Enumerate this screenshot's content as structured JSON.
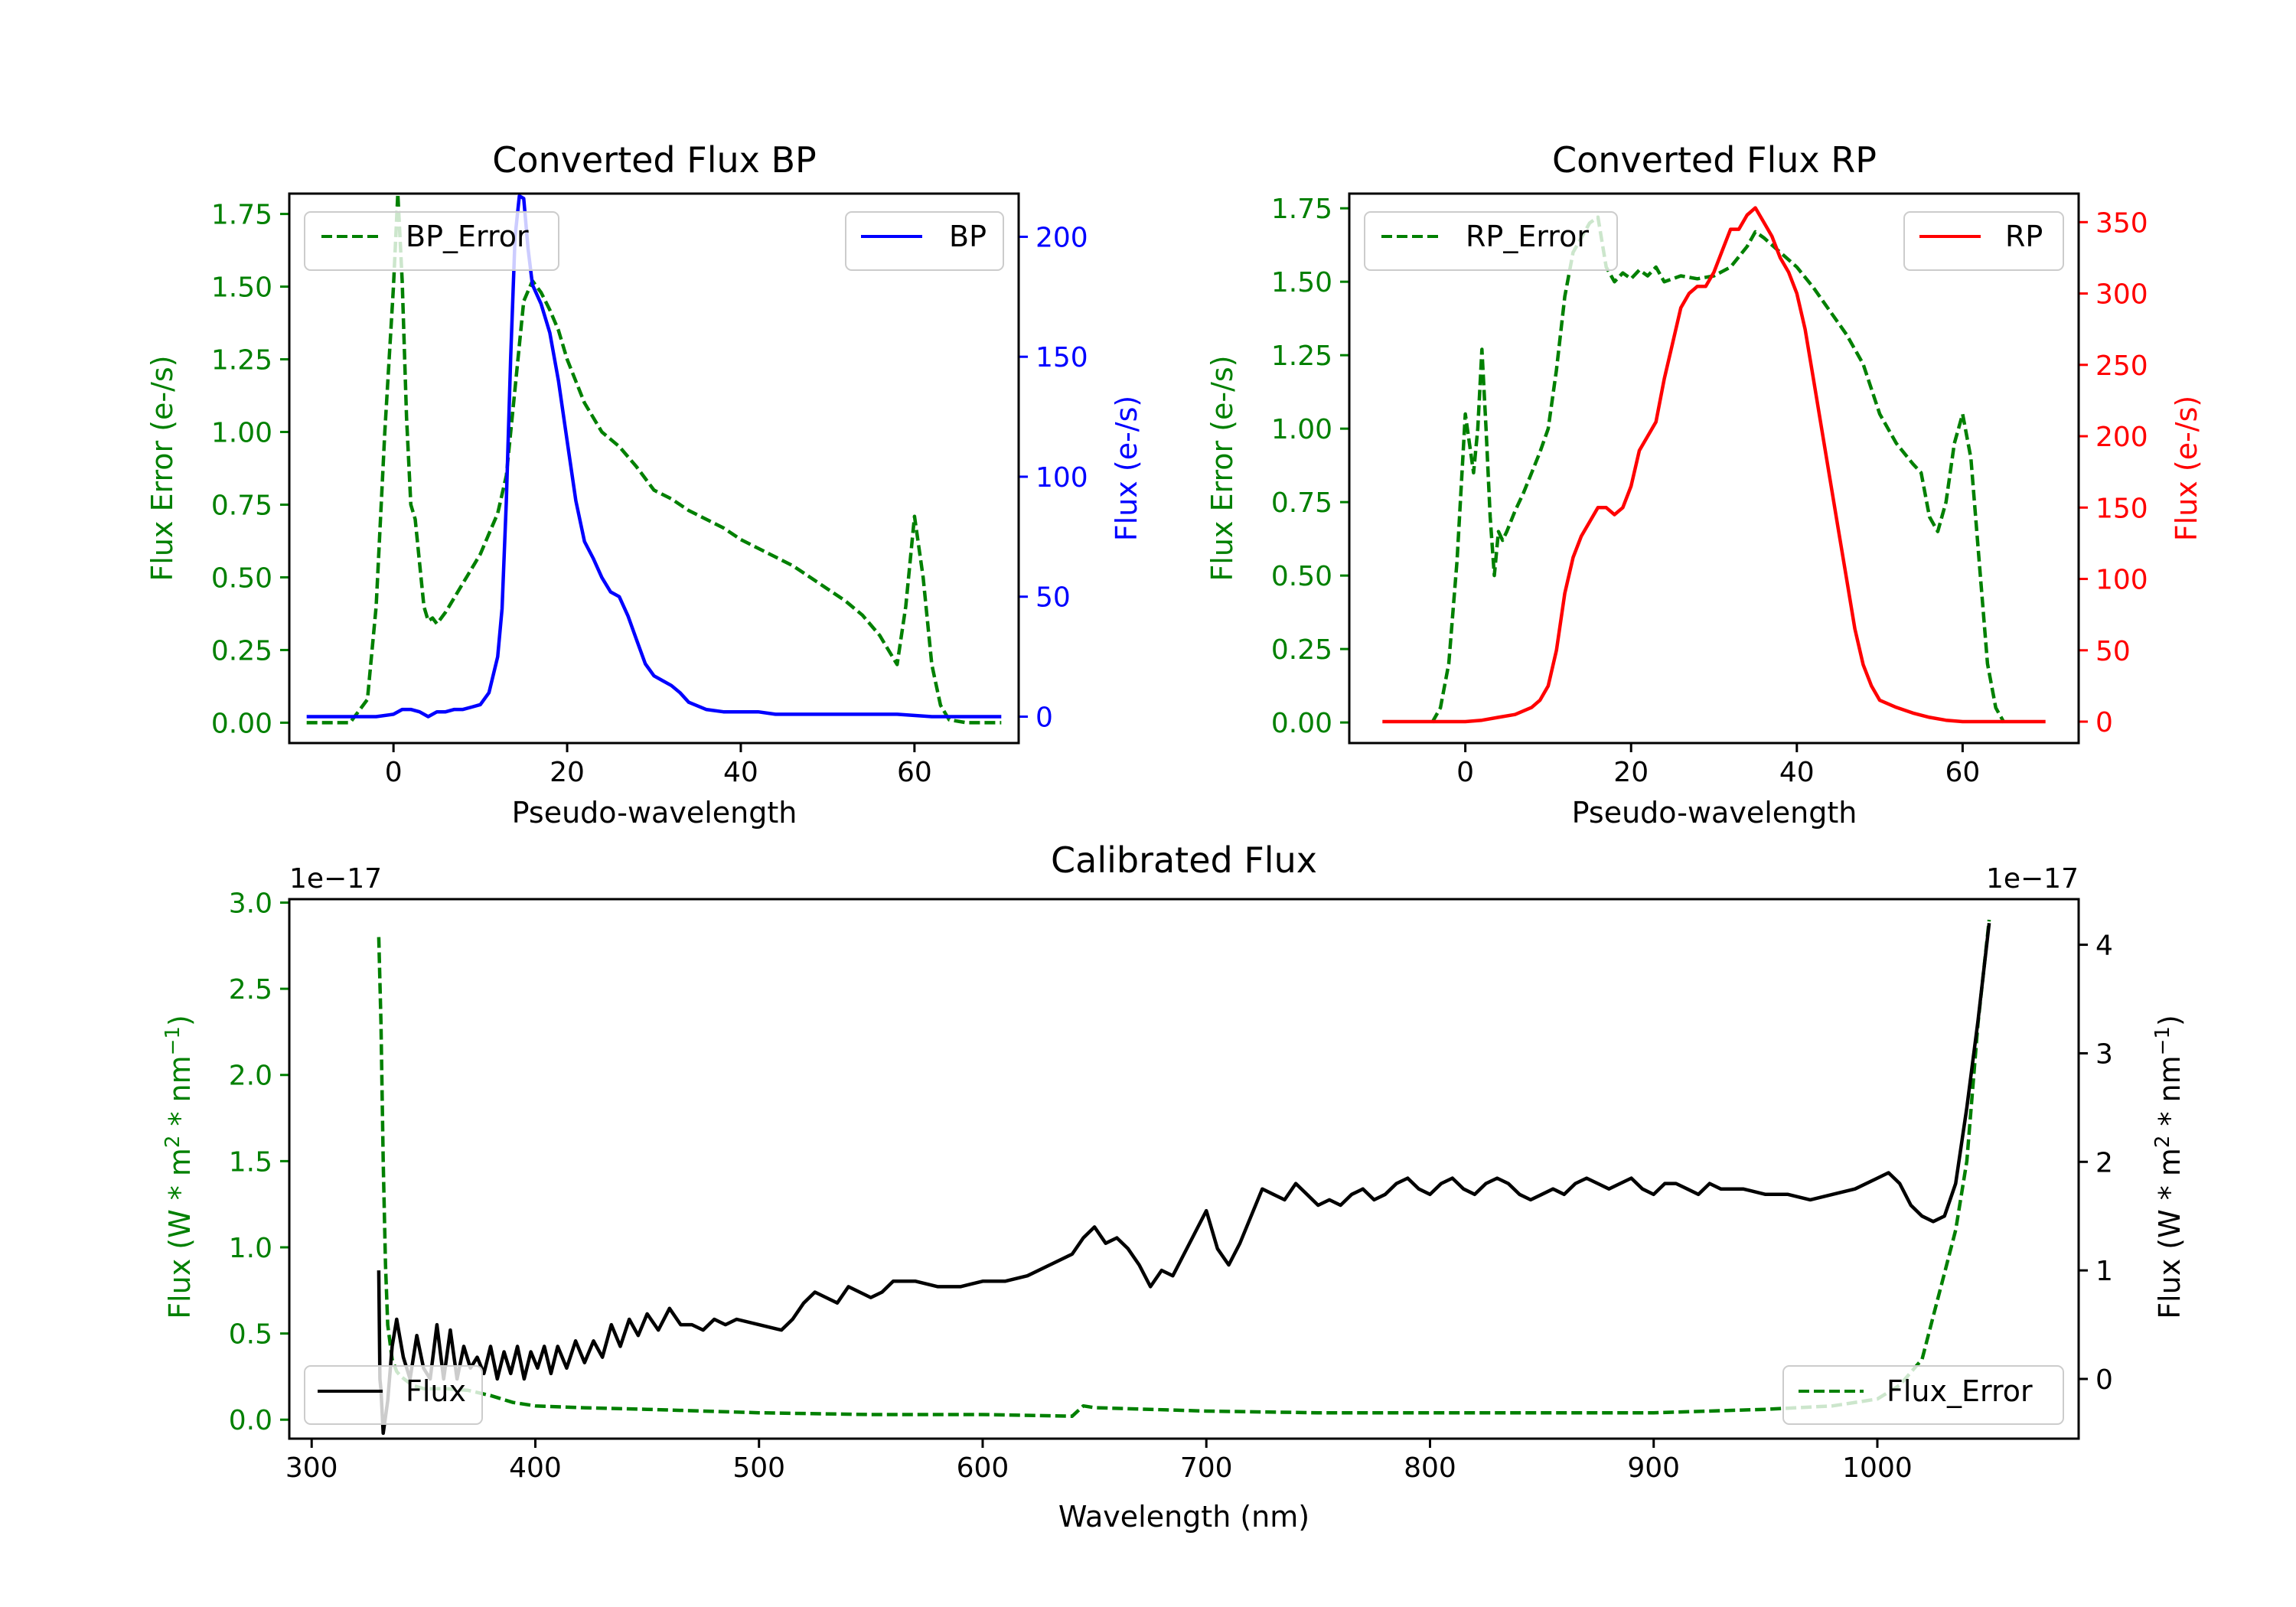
{
  "chart_data": [
    {
      "id": "bp",
      "type": "line",
      "title": "Converted Flux BP",
      "xlabel": "Pseudo-wavelength",
      "xlim": [
        -12,
        72
      ],
      "xticks": [
        0,
        20,
        40,
        60
      ],
      "xtick_labels": [
        "0",
        "20",
        "40",
        "60"
      ],
      "left_axis": {
        "label": "Flux Error (e-/s)",
        "color": "#008000",
        "ylim": [
          -0.07,
          1.82
        ],
        "ticks": [
          0.0,
          0.25,
          0.5,
          0.75,
          1.0,
          1.25,
          1.5,
          1.75
        ],
        "tick_labels": [
          "0.00",
          "0.25",
          "0.50",
          "0.75",
          "1.00",
          "1.25",
          "1.50",
          "1.75"
        ]
      },
      "right_axis": {
        "label": "Flux (e-/s)",
        "color": "#0000ff",
        "ylim": [
          -11,
          218
        ],
        "ticks": [
          0,
          50,
          100,
          150,
          200
        ],
        "tick_labels": [
          "0",
          "50",
          "100",
          "150",
          "200"
        ]
      },
      "series": [
        {
          "name": "BP_Error",
          "axis": "left",
          "color": "#008000",
          "dash": true,
          "legend": "top-left",
          "x": [
            -10,
            -5,
            -3,
            -2,
            -1,
            0,
            0.5,
            1,
            1.5,
            2,
            2.5,
            3,
            3.5,
            4,
            4.5,
            5,
            6,
            7,
            8,
            9,
            10,
            11,
            12,
            13,
            14,
            15,
            16,
            17,
            18,
            19,
            20,
            22,
            24,
            26,
            28,
            30,
            32,
            34,
            36,
            38,
            40,
            42,
            44,
            46,
            48,
            50,
            52,
            54,
            56,
            57,
            58,
            59,
            60,
            61,
            62,
            63,
            64,
            66,
            68,
            70
          ],
          "values": [
            0.0,
            0.0,
            0.08,
            0.4,
            1.0,
            1.5,
            1.82,
            1.52,
            1.05,
            0.75,
            0.7,
            0.55,
            0.4,
            0.35,
            0.36,
            0.34,
            0.38,
            0.43,
            0.48,
            0.53,
            0.58,
            0.65,
            0.72,
            0.85,
            1.15,
            1.45,
            1.52,
            1.48,
            1.42,
            1.35,
            1.25,
            1.1,
            1.0,
            0.95,
            0.88,
            0.8,
            0.77,
            0.73,
            0.7,
            0.67,
            0.63,
            0.6,
            0.57,
            0.54,
            0.5,
            0.46,
            0.42,
            0.37,
            0.3,
            0.25,
            0.2,
            0.4,
            0.71,
            0.5,
            0.2,
            0.06,
            0.01,
            0.0,
            0.0,
            0.0
          ]
        },
        {
          "name": "BP",
          "axis": "right",
          "color": "#0000ff",
          "dash": false,
          "legend": "top-right",
          "x": [
            -10,
            -4,
            -2,
            0,
            1,
            2,
            3,
            4,
            5,
            6,
            7,
            8,
            9,
            10,
            11,
            12,
            12.5,
            13,
            13.5,
            14,
            14.5,
            15,
            15.5,
            16,
            17,
            18,
            19,
            20,
            21,
            22,
            23,
            24,
            25,
            26,
            27,
            28,
            29,
            30,
            31,
            32,
            33,
            34,
            36,
            38,
            40,
            42,
            44,
            46,
            50,
            54,
            58,
            62,
            66,
            70
          ],
          "values": [
            0,
            0,
            0,
            1,
            3,
            3,
            2,
            0,
            2,
            2,
            3,
            3,
            4,
            5,
            10,
            25,
            45,
            90,
            150,
            200,
            217,
            216,
            195,
            180,
            172,
            160,
            140,
            115,
            90,
            73,
            66,
            58,
            52,
            50,
            42,
            32,
            22,
            17,
            15,
            13,
            10,
            6,
            3,
            2,
            2,
            2,
            1,
            1,
            1,
            1,
            1,
            0,
            0,
            0
          ]
        }
      ]
    },
    {
      "id": "rp",
      "type": "line",
      "title": "Converted Flux RP",
      "xlabel": "Pseudo-wavelength",
      "xlim": [
        -14,
        74
      ],
      "xticks": [
        0,
        20,
        40,
        60
      ],
      "xtick_labels": [
        "0",
        "20",
        "40",
        "60"
      ],
      "left_axis": {
        "label": "Flux Error (e-/s)",
        "color": "#008000",
        "ylim": [
          -0.07,
          1.8
        ],
        "ticks": [
          0.0,
          0.25,
          0.5,
          0.75,
          1.0,
          1.25,
          1.5,
          1.75
        ],
        "tick_labels": [
          "0.00",
          "0.25",
          "0.50",
          "0.75",
          "1.00",
          "1.25",
          "1.50",
          "1.75"
        ]
      },
      "right_axis": {
        "label": "Flux (e-/s)",
        "color": "#ff0000",
        "ylim": [
          -15,
          370
        ],
        "ticks": [
          0,
          50,
          100,
          150,
          200,
          250,
          300,
          350
        ],
        "tick_labels": [
          "0",
          "50",
          "100",
          "150",
          "200",
          "250",
          "300",
          "350"
        ]
      },
      "series": [
        {
          "name": "RP_Error",
          "axis": "left",
          "color": "#008000",
          "dash": true,
          "legend": "top-left",
          "x": [
            -4,
            -3,
            -2,
            -1,
            0,
            0.5,
            1,
            1.5,
            2,
            2.5,
            3,
            3.5,
            4,
            4.5,
            5,
            6,
            7,
            8,
            9,
            10,
            11,
            12,
            13,
            14,
            15,
            16,
            17,
            18,
            19,
            20,
            21,
            22,
            23,
            24,
            26,
            28,
            30,
            32,
            34,
            35,
            36,
            38,
            40,
            42,
            44,
            46,
            48,
            50,
            52,
            54,
            55,
            56,
            57,
            58,
            59,
            60,
            61,
            62,
            63,
            64,
            65
          ],
          "values": [
            0.0,
            0.05,
            0.2,
            0.55,
            1.05,
            0.95,
            0.85,
            1.0,
            1.27,
            1.0,
            0.7,
            0.5,
            0.65,
            0.62,
            0.65,
            0.72,
            0.78,
            0.85,
            0.92,
            1.0,
            1.2,
            1.45,
            1.6,
            1.65,
            1.7,
            1.72,
            1.55,
            1.5,
            1.53,
            1.51,
            1.54,
            1.52,
            1.55,
            1.5,
            1.52,
            1.51,
            1.52,
            1.55,
            1.62,
            1.67,
            1.65,
            1.6,
            1.55,
            1.48,
            1.4,
            1.32,
            1.22,
            1.05,
            0.95,
            0.88,
            0.85,
            0.7,
            0.65,
            0.75,
            0.95,
            1.05,
            0.9,
            0.55,
            0.2,
            0.05,
            0.0
          ]
        },
        {
          "name": "RP",
          "axis": "right",
          "color": "#ff0000",
          "dash": false,
          "legend": "top-right",
          "x": [
            -10,
            -4,
            0,
            2,
            4,
            6,
            8,
            9,
            10,
            11,
            12,
            13,
            14,
            15,
            16,
            17,
            18,
            19,
            20,
            21,
            22,
            23,
            24,
            25,
            26,
            27,
            28,
            29,
            30,
            31,
            32,
            33,
            34,
            35,
            36,
            37,
            38,
            39,
            40,
            41,
            42,
            43,
            44,
            45,
            46,
            47,
            48,
            49,
            50,
            52,
            54,
            56,
            58,
            60,
            62,
            64,
            66,
            70
          ],
          "values": [
            0,
            0,
            0,
            1,
            3,
            5,
            10,
            15,
            25,
            50,
            90,
            115,
            130,
            140,
            150,
            150,
            145,
            150,
            165,
            190,
            200,
            210,
            240,
            265,
            290,
            300,
            305,
            305,
            315,
            330,
            345,
            345,
            355,
            360,
            350,
            340,
            325,
            315,
            300,
            275,
            240,
            205,
            170,
            135,
            100,
            65,
            40,
            25,
            15,
            10,
            6,
            3,
            1,
            0,
            0,
            0,
            0,
            0
          ]
        }
      ]
    },
    {
      "id": "cal",
      "type": "line",
      "title": "Calibrated Flux",
      "xlabel": "Wavelength (nm)",
      "xlim": [
        290,
        1090
      ],
      "xticks": [
        300,
        400,
        500,
        600,
        700,
        800,
        900,
        1000
      ],
      "xtick_labels": [
        "300",
        "400",
        "500",
        "600",
        "700",
        "800",
        "900",
        "1000"
      ],
      "left_axis": {
        "label": "Flux (W * m^2 * nm^-1)",
        "color": "#008000",
        "offset_text": "1e−17",
        "ylim": [
          -0.11,
          3.02
        ],
        "ticks": [
          0.0,
          0.5,
          1.0,
          1.5,
          2.0,
          2.5,
          3.0
        ],
        "tick_labels": [
          "0.0",
          "0.5",
          "1.0",
          "1.5",
          "2.0",
          "2.5",
          "3.0"
        ]
      },
      "right_axis": {
        "label": "Flux (W * m^2 * nm^-1)",
        "color": "#000000",
        "offset_text": "1e−17",
        "ylim": [
          -0.55,
          4.42
        ],
        "ticks": [
          0,
          1,
          2,
          3,
          4
        ],
        "tick_labels": [
          "0",
          "1",
          "2",
          "3",
          "4"
        ]
      },
      "series": [
        {
          "name": "Flux_Error",
          "axis": "left",
          "color": "#008000",
          "dash": true,
          "legend": "bottom-right",
          "x": [
            330,
            331,
            332,
            333,
            334,
            336,
            338,
            340,
            345,
            350,
            360,
            370,
            380,
            390,
            400,
            420,
            450,
            500,
            550,
            600,
            640,
            645,
            650,
            700,
            750,
            800,
            850,
            900,
            950,
            980,
            1000,
            1010,
            1020,
            1025,
            1030,
            1035,
            1040,
            1045,
            1050
          ],
          "values": [
            2.8,
            2.3,
            1.5,
            0.9,
            0.55,
            0.35,
            0.28,
            0.25,
            0.2,
            0.18,
            0.18,
            0.17,
            0.14,
            0.1,
            0.08,
            0.07,
            0.06,
            0.04,
            0.03,
            0.03,
            0.02,
            0.08,
            0.07,
            0.05,
            0.04,
            0.04,
            0.04,
            0.04,
            0.06,
            0.08,
            0.12,
            0.2,
            0.35,
            0.6,
            0.85,
            1.1,
            1.5,
            2.3,
            2.9
          ]
        },
        {
          "name": "Flux",
          "axis": "right",
          "color": "#000000",
          "dash": false,
          "legend": "bottom-left",
          "x": [
            330,
            330.5,
            331,
            332,
            334,
            336,
            338,
            341,
            344,
            347,
            350,
            353,
            356,
            359,
            362,
            365,
            368,
            371,
            374,
            377,
            380,
            383,
            386,
            389,
            392,
            395,
            398,
            401,
            404,
            407,
            410,
            414,
            418,
            422,
            426,
            430,
            434,
            438,
            442,
            446,
            450,
            455,
            460,
            465,
            470,
            475,
            480,
            485,
            490,
            500,
            510,
            515,
            520,
            525,
            530,
            535,
            540,
            545,
            550,
            555,
            560,
            570,
            580,
            590,
            600,
            610,
            620,
            630,
            640,
            645,
            650,
            655,
            660,
            665,
            670,
            675,
            680,
            685,
            690,
            695,
            700,
            705,
            710,
            715,
            720,
            725,
            730,
            735,
            740,
            745,
            750,
            755,
            760,
            765,
            770,
            775,
            780,
            785,
            790,
            795,
            800,
            805,
            810,
            815,
            820,
            825,
            830,
            835,
            840,
            845,
            850,
            855,
            860,
            865,
            870,
            875,
            880,
            885,
            890,
            895,
            900,
            905,
            910,
            915,
            920,
            925,
            930,
            940,
            950,
            960,
            970,
            980,
            990,
            1000,
            1005,
            1010,
            1015,
            1020,
            1025,
            1030,
            1035,
            1040,
            1045,
            1050
          ],
          "values": [
            1.0,
            0.0,
            -0.1,
            -0.5,
            -0.2,
            0.3,
            0.55,
            0.2,
            0.0,
            0.4,
            0.1,
            0.0,
            0.5,
            0.0,
            0.45,
            0.0,
            0.3,
            0.1,
            0.2,
            0.05,
            0.3,
            0.0,
            0.25,
            0.05,
            0.3,
            0.0,
            0.25,
            0.1,
            0.3,
            0.05,
            0.3,
            0.1,
            0.35,
            0.15,
            0.35,
            0.2,
            0.5,
            0.3,
            0.55,
            0.4,
            0.6,
            0.45,
            0.65,
            0.5,
            0.5,
            0.45,
            0.55,
            0.5,
            0.55,
            0.5,
            0.45,
            0.55,
            0.7,
            0.8,
            0.75,
            0.7,
            0.85,
            0.8,
            0.75,
            0.8,
            0.9,
            0.9,
            0.85,
            0.85,
            0.9,
            0.9,
            0.95,
            1.05,
            1.15,
            1.3,
            1.4,
            1.25,
            1.3,
            1.2,
            1.05,
            0.85,
            1.0,
            0.95,
            1.15,
            1.35,
            1.55,
            1.2,
            1.05,
            1.25,
            1.5,
            1.75,
            1.7,
            1.65,
            1.8,
            1.7,
            1.6,
            1.65,
            1.6,
            1.7,
            1.75,
            1.65,
            1.7,
            1.8,
            1.85,
            1.75,
            1.7,
            1.8,
            1.85,
            1.75,
            1.7,
            1.8,
            1.85,
            1.8,
            1.7,
            1.65,
            1.7,
            1.75,
            1.7,
            1.8,
            1.85,
            1.8,
            1.75,
            1.8,
            1.85,
            1.75,
            1.7,
            1.8,
            1.8,
            1.75,
            1.7,
            1.8,
            1.75,
            1.75,
            1.7,
            1.7,
            1.65,
            1.7,
            1.75,
            1.85,
            1.9,
            1.8,
            1.6,
            1.5,
            1.45,
            1.5,
            1.8,
            2.5,
            3.3,
            4.2
          ]
        }
      ]
    }
  ]
}
